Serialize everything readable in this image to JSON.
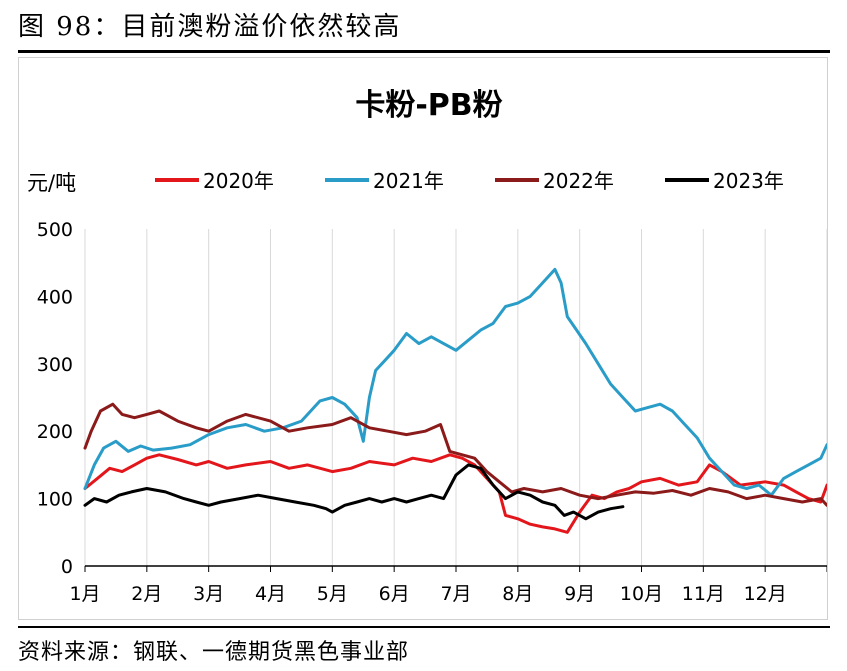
{
  "figure": {
    "title": "图 98：目前澳粉溢价依然较高",
    "source": "资料来源：钢联、一德期货黑色事业部"
  },
  "chart_data": {
    "type": "line",
    "title": "卡粉-PB粉",
    "ylabel": "元/吨",
    "xlabel": "",
    "ylim": [
      0,
      500
    ],
    "yticks": [
      0,
      100,
      200,
      300,
      400,
      500
    ],
    "x_categories": [
      "1月",
      "2月",
      "3月",
      "4月",
      "5月",
      "6月",
      "7月",
      "8月",
      "9月",
      "10月",
      "11月",
      "12月"
    ],
    "x_unit": "month (decimal, 1 = start of Jan)",
    "grid": true,
    "legend_position": "top",
    "series": [
      {
        "name": "2020年",
        "color": "#e3161b",
        "x": [
          1.0,
          1.2,
          1.4,
          1.6,
          1.8,
          2.0,
          2.2,
          2.5,
          2.8,
          3.0,
          3.3,
          3.6,
          4.0,
          4.3,
          4.6,
          5.0,
          5.3,
          5.6,
          6.0,
          6.3,
          6.6,
          6.9,
          7.1,
          7.3,
          7.5,
          7.7,
          7.8,
          8.0,
          8.2,
          8.4,
          8.6,
          8.8,
          9.0,
          9.2,
          9.4,
          9.6,
          9.8,
          10.0,
          10.3,
          10.6,
          10.9,
          11.1,
          11.3,
          11.6,
          12.0,
          12.3,
          12.5,
          12.7,
          12.9,
          13.0
        ],
        "values": [
          115,
          130,
          145,
          140,
          150,
          160,
          165,
          158,
          150,
          155,
          145,
          150,
          155,
          145,
          150,
          140,
          145,
          155,
          150,
          160,
          155,
          165,
          160,
          150,
          130,
          110,
          75,
          70,
          62,
          58,
          55,
          50,
          80,
          105,
          100,
          110,
          115,
          125,
          130,
          120,
          125,
          150,
          140,
          120,
          125,
          120,
          110,
          100,
          95,
          120
        ]
      },
      {
        "name": "2021年",
        "color": "#2a9cc8",
        "x": [
          1.0,
          1.15,
          1.3,
          1.5,
          1.7,
          1.9,
          2.1,
          2.4,
          2.7,
          3.0,
          3.3,
          3.6,
          3.9,
          4.2,
          4.5,
          4.8,
          5.0,
          5.2,
          5.4,
          5.5,
          5.6,
          5.7,
          5.8,
          6.0,
          6.2,
          6.4,
          6.6,
          6.8,
          7.0,
          7.2,
          7.4,
          7.6,
          7.8,
          8.0,
          8.2,
          8.4,
          8.6,
          8.7,
          8.8,
          8.95,
          9.1,
          9.3,
          9.5,
          9.7,
          9.9,
          10.1,
          10.3,
          10.5,
          10.7,
          10.9,
          11.1,
          11.3,
          11.5,
          11.7,
          11.9,
          12.1,
          12.3,
          12.5,
          12.7,
          12.9,
          13.0
        ],
        "values": [
          115,
          150,
          175,
          185,
          170,
          178,
          172,
          175,
          180,
          195,
          205,
          210,
          200,
          205,
          215,
          245,
          250,
          240,
          220,
          185,
          250,
          290,
          300,
          320,
          345,
          330,
          340,
          330,
          320,
          335,
          350,
          360,
          385,
          390,
          400,
          420,
          440,
          420,
          370,
          350,
          330,
          300,
          270,
          250,
          230,
          235,
          240,
          230,
          210,
          190,
          160,
          140,
          120,
          115,
          120,
          105,
          130,
          140,
          150,
          160,
          180
        ]
      },
      {
        "name": "2022年",
        "color": "#8b1a1a",
        "x": [
          1.0,
          1.1,
          1.25,
          1.45,
          1.6,
          1.8,
          2.0,
          2.2,
          2.5,
          2.8,
          3.0,
          3.3,
          3.6,
          4.0,
          4.3,
          4.6,
          5.0,
          5.3,
          5.6,
          5.9,
          6.2,
          6.5,
          6.75,
          6.9,
          7.1,
          7.3,
          7.5,
          7.7,
          7.9,
          8.1,
          8.4,
          8.7,
          9.0,
          9.3,
          9.6,
          9.9,
          10.2,
          10.5,
          10.8,
          11.1,
          11.4,
          11.7,
          12.0,
          12.3,
          12.6,
          12.9,
          13.0
        ],
        "values": [
          175,
          200,
          230,
          240,
          225,
          220,
          225,
          230,
          215,
          205,
          200,
          215,
          225,
          215,
          200,
          205,
          210,
          220,
          205,
          200,
          195,
          200,
          210,
          170,
          165,
          160,
          140,
          125,
          110,
          115,
          110,
          115,
          105,
          100,
          105,
          110,
          108,
          112,
          105,
          115,
          110,
          100,
          105,
          100,
          95,
          100,
          90
        ]
      },
      {
        "name": "2023年",
        "color": "#000000",
        "x": [
          1.0,
          1.15,
          1.35,
          1.55,
          1.75,
          2.0,
          2.3,
          2.6,
          2.8,
          3.0,
          3.2,
          3.5,
          3.8,
          4.1,
          4.4,
          4.7,
          4.9,
          5.0,
          5.2,
          5.4,
          5.6,
          5.8,
          6.0,
          6.2,
          6.4,
          6.6,
          6.8,
          7.0,
          7.2,
          7.4,
          7.6,
          7.8,
          8.0,
          8.2,
          8.4,
          8.6,
          8.75,
          8.9,
          9.1,
          9.3,
          9.5,
          9.7
        ],
        "values": [
          90,
          100,
          95,
          105,
          110,
          115,
          110,
          100,
          95,
          90,
          95,
          100,
          105,
          100,
          95,
          90,
          85,
          80,
          90,
          95,
          100,
          95,
          100,
          95,
          100,
          105,
          100,
          135,
          150,
          145,
          120,
          100,
          110,
          105,
          95,
          90,
          75,
          80,
          70,
          80,
          85,
          88
        ]
      }
    ]
  }
}
